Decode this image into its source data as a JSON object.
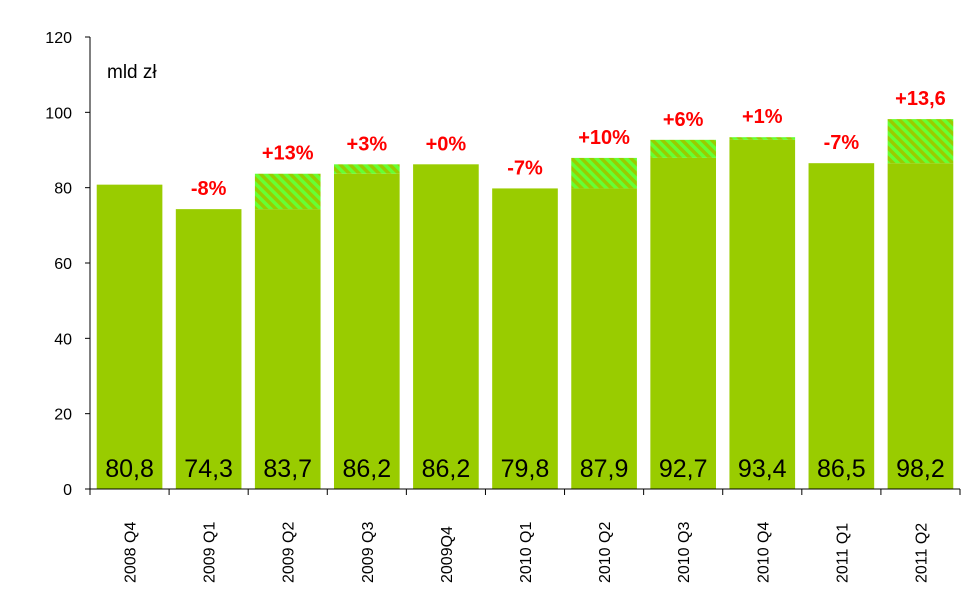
{
  "chart_data": {
    "type": "bar",
    "unit_label": "mld zł",
    "categories": [
      "2008 Q4",
      "2009 Q1",
      "2009 Q2",
      "2009 Q3",
      "2009Q4",
      "2010 Q1",
      "2010 Q2",
      "2010 Q3",
      "2010 Q4",
      "2011 Q1",
      "2011 Q2"
    ],
    "values": [
      80.8,
      74.3,
      83.7,
      86.2,
      86.2,
      79.8,
      87.9,
      92.7,
      93.4,
      86.5,
      98.2
    ],
    "value_labels": [
      "80,8",
      "74,3",
      "83,7",
      "86,2",
      "86,2",
      "79,8",
      "87,9",
      "92,7",
      "93,4",
      "86,5",
      "98,2"
    ],
    "change_labels": [
      "",
      "-8%",
      "+13%",
      "+3%",
      "+0%",
      "-7%",
      "+10%",
      "+6%",
      "+1%",
      "-7%",
      "+13,6"
    ],
    "ylim": [
      0,
      120
    ],
    "yticks": [
      0,
      20,
      40,
      60,
      80,
      100,
      120
    ],
    "grid": false,
    "colors": {
      "bar": "#99cc00",
      "increase_hatch": "#66ff33",
      "change_label": "#ff0000",
      "axis": "#000000"
    }
  }
}
